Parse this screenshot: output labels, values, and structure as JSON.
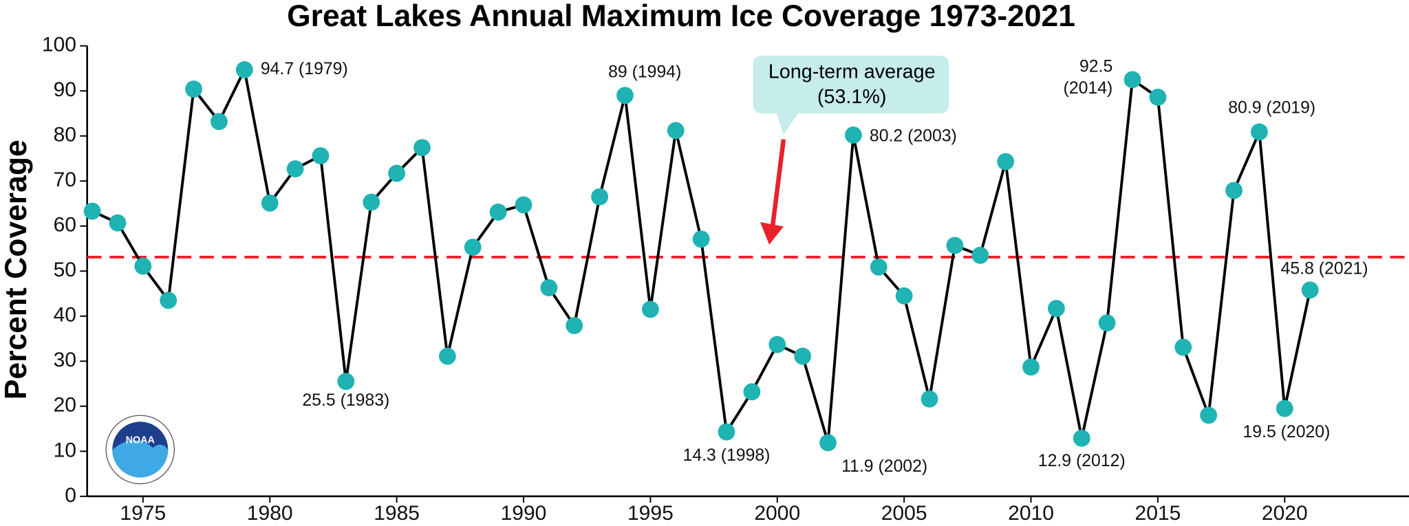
{
  "chart_data": {
    "type": "line",
    "title": "Great Lakes Annual Maximum Ice Coverage 1973-2021",
    "y_label": "Percent Coverage",
    "x": [
      1973,
      1974,
      1975,
      1976,
      1977,
      1978,
      1979,
      1980,
      1981,
      1982,
      1983,
      1984,
      1985,
      1986,
      1987,
      1988,
      1989,
      1990,
      1991,
      1992,
      1993,
      1994,
      1995,
      1996,
      1997,
      1998,
      1999,
      2000,
      2001,
      2002,
      2003,
      2004,
      2005,
      2006,
      2007,
      2008,
      2009,
      2010,
      2011,
      2012,
      2013,
      2014,
      2015,
      2016,
      2017,
      2018,
      2019,
      2020,
      2021
    ],
    "series": [
      {
        "name": "Annual maximum ice coverage",
        "line_color": "#000000",
        "color": "#1fb3b3",
        "values": [
          63.3,
          60.7,
          51.1,
          43.5,
          90.4,
          83.2,
          94.7,
          65.1,
          72.7,
          75.6,
          25.5,
          65.3,
          71.7,
          77.4,
          31.1,
          55.3,
          63.1,
          64.7,
          46.3,
          37.9,
          66.5,
          89,
          41.5,
          81.2,
          57.1,
          14.3,
          23.2,
          33.7,
          31.1,
          11.9,
          80.2,
          50.9,
          44.5,
          21.6,
          55.7,
          53.5,
          74.3,
          28.7,
          41.7,
          12.9,
          38.5,
          92.5,
          88.6,
          33.1,
          18.0,
          67.9,
          80.9,
          19.5,
          45.8
        ],
        "value_labels": [
          null,
          null,
          null,
          null,
          null,
          null,
          "94.7 (1979)",
          null,
          null,
          null,
          "25.5 (1983)",
          null,
          null,
          null,
          null,
          null,
          null,
          null,
          null,
          null,
          null,
          "89 (1994)",
          null,
          null,
          null,
          "14.3 (1998)",
          null,
          null,
          null,
          "11.9 (2002)",
          "80.2 (2003)",
          null,
          null,
          null,
          null,
          null,
          null,
          null,
          null,
          "12.9 (2012)",
          null,
          "92.5 (2014)",
          null,
          null,
          null,
          null,
          "80.9 (2019)",
          "19.5 (2020)",
          "45.8 (2021)"
        ]
      }
    ],
    "average": 53.1,
    "average_color": "#e8212b",
    "average_label": [
      "Long-term average",
      "(53.1%)"
    ],
    "logo": "NOAA",
    "xlim": [
      1972.8,
      2024.9
    ],
    "xticks": [
      1975,
      1980,
      1985,
      1990,
      1995,
      2000,
      2005,
      2010,
      2015,
      2020
    ],
    "ylim": [
      0,
      100
    ],
    "yticks": [
      0,
      10,
      20,
      30,
      40,
      50,
      60,
      70,
      80,
      90,
      100
    ]
  }
}
